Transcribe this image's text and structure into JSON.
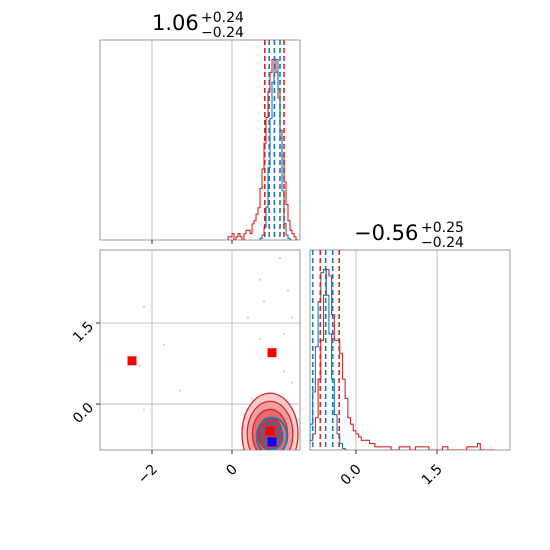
{
  "chart_data": [
    {
      "type": "histogram",
      "panel": "top-left",
      "title": {
        "main": "1.06",
        "sup": "+0.24",
        "sub": "−0.24"
      },
      "xlim": [
        -3.3,
        1.7
      ],
      "x_ticks": [
        -2,
        0
      ],
      "x_tick_labels_shown": false,
      "grid": true,
      "quantile_lines": {
        "red": [
          0.82,
          1.3
        ],
        "blue": [
          0.93,
          1.06,
          1.2
        ]
      },
      "series": [
        {
          "name": "",
          "color": "#d62728",
          "bins_x": [
            -0.1,
            -0.05,
            0.0,
            0.05,
            0.1,
            0.15,
            0.2,
            0.25,
            0.3,
            0.35,
            0.4,
            0.45,
            0.5,
            0.55,
            0.6,
            0.65,
            0.7,
            0.75,
            0.8,
            0.85,
            0.9,
            0.95,
            1.0,
            1.05,
            1.1,
            1.15,
            1.2,
            1.25,
            1.3,
            1.35,
            1.4,
            1.45,
            1.5,
            1.55,
            1.6
          ],
          "counts": [
            1,
            1,
            2,
            0,
            1,
            2,
            1,
            0,
            2,
            3,
            3,
            2,
            5,
            6,
            8,
            10,
            16,
            22,
            30,
            38,
            46,
            52,
            56,
            56,
            52,
            44,
            34,
            26,
            18,
            11,
            6,
            3,
            2,
            1,
            0
          ]
        },
        {
          "name": "",
          "color": "#1f77b4",
          "bins_x": [
            0.7,
            0.75,
            0.8,
            0.85,
            0.9,
            0.95,
            1.0,
            1.05,
            1.1,
            1.15,
            1.2,
            1.25,
            1.3,
            1.35,
            1.4,
            1.45
          ],
          "counts": [
            1,
            3,
            8,
            20,
            44,
            74,
            96,
            110,
            110,
            92,
            62,
            30,
            10,
            3,
            1,
            0
          ]
        }
      ]
    },
    {
      "type": "scatter",
      "panel": "bottom-left",
      "xlim": [
        -3.3,
        1.7
      ],
      "ylim": [
        -0.85,
        2.85
      ],
      "x_ticks": [
        -2,
        0
      ],
      "x_tick_labels": [
        "−2",
        "0"
      ],
      "y_ticks": [
        0.0,
        1.5
      ],
      "y_tick_labels": [
        "0.0",
        "1.5"
      ],
      "grid": true,
      "markers": [
        {
          "name": "",
          "color": "#ff0000",
          "shape": "square",
          "x": -2.5,
          "y": 0.8
        },
        {
          "name": "",
          "color": "#ff0000",
          "shape": "square",
          "x": 1.0,
          "y": 0.95
        },
        {
          "name": "",
          "color": "#ff0000",
          "shape": "square",
          "x": 0.95,
          "y": -0.5
        },
        {
          "name": "",
          "color": "#0000ff",
          "shape": "square",
          "x": 1.0,
          "y": -0.7
        }
      ],
      "contours": [
        {
          "color": "#d62728",
          "cx": 0.95,
          "cy": -0.55,
          "levels": [
            [
              0.7,
              0.75
            ],
            [
              0.57,
              0.6
            ],
            [
              0.44,
              0.45
            ],
            [
              0.3,
              0.3
            ]
          ]
        },
        {
          "color": "#1f77b4",
          "cx": 1.0,
          "cy": -0.6,
          "levels": [
            [
              0.38,
              0.35
            ],
            [
              0.26,
              0.24
            ],
            [
              0.15,
              0.14
            ]
          ]
        }
      ],
      "faint_points": [
        {
          "x": 1.2,
          "y": 2.7
        },
        {
          "x": 0.7,
          "y": 2.3
        },
        {
          "x": 1.4,
          "y": 2.1
        },
        {
          "x": 0.4,
          "y": 1.6
        },
        {
          "x": 1.5,
          "y": 1.6
        },
        {
          "x": 1.3,
          "y": 1.3
        },
        {
          "x": 0.7,
          "y": 1.2
        },
        {
          "x": -2.2,
          "y": 1.8
        },
        {
          "x": -1.7,
          "y": 1.1
        },
        {
          "x": -2.3,
          "y": 0.7
        },
        {
          "x": -2.2,
          "y": -0.1
        },
        {
          "x": -1.3,
          "y": 0.25
        },
        {
          "x": 1.3,
          "y": 0.6
        },
        {
          "x": 0.5,
          "y": 0.1
        },
        {
          "x": 1.5,
          "y": 0.4
        },
        {
          "x": 0.8,
          "y": 1.9
        }
      ]
    },
    {
      "type": "histogram",
      "panel": "bottom-right",
      "title": {
        "main": "−0.56",
        "sup": "+0.25",
        "sub": "−0.24"
      },
      "xlim": [
        -0.85,
        2.85
      ],
      "x_ticks": [
        0.0,
        1.5
      ],
      "x_tick_labels": [
        "0.0",
        "1.5"
      ],
      "grid": true,
      "quantile_lines": {
        "red": [
          -0.66,
          -0.31
        ],
        "blue": [
          -0.8,
          -0.56,
          -0.43
        ]
      },
      "series": [
        {
          "name": "",
          "color": "#d62728",
          "bins_x": [
            -0.95,
            -0.9,
            -0.85,
            -0.8,
            -0.75,
            -0.7,
            -0.65,
            -0.6,
            -0.55,
            -0.5,
            -0.45,
            -0.4,
            -0.35,
            -0.3,
            -0.25,
            -0.2,
            -0.15,
            -0.1,
            -0.05,
            0.0,
            0.05,
            0.1,
            0.15,
            0.2,
            0.25,
            0.3,
            0.35,
            0.4,
            0.45,
            0.5,
            0.55,
            0.6,
            0.65,
            0.7,
            0.75,
            0.8,
            0.85,
            0.9,
            0.95,
            1.0,
            1.05,
            1.1,
            1.15,
            1.2,
            1.25,
            1.3,
            1.35,
            1.4,
            1.45,
            1.5,
            1.55,
            1.6,
            1.65,
            1.7,
            1.75,
            1.8,
            1.85,
            1.9,
            1.95,
            2.0,
            2.05,
            2.1,
            2.15,
            2.2,
            2.25,
            2.3,
            2.35,
            2.4,
            2.45,
            2.5
          ],
          "counts": [
            1,
            2,
            3,
            5,
            10,
            22,
            34,
            48,
            56,
            54,
            42,
            34,
            34,
            30,
            22,
            16,
            10,
            8,
            6,
            5,
            4,
            3,
            3,
            3,
            2,
            2,
            1,
            1,
            1,
            1,
            1,
            1,
            0,
            0,
            0,
            1,
            1,
            1,
            1,
            0,
            0,
            1,
            1,
            1,
            1,
            1,
            0,
            0,
            0,
            0,
            0,
            1,
            1,
            0,
            0,
            0,
            0,
            0,
            0,
            0,
            1,
            1,
            1,
            1,
            2,
            0,
            0,
            0,
            0,
            0
          ]
        },
        {
          "name": "",
          "color": "#1f77b4",
          "bins_x": [
            -0.95,
            -0.9,
            -0.85,
            -0.8,
            -0.75,
            -0.7,
            -0.65,
            -0.6,
            -0.55,
            -0.5,
            -0.45,
            -0.4,
            -0.35,
            -0.3,
            -0.25,
            -0.2
          ],
          "counts": [
            2,
            6,
            16,
            36,
            64,
            92,
            110,
            112,
            96,
            72,
            44,
            22,
            10,
            4,
            1,
            0
          ]
        }
      ]
    }
  ]
}
